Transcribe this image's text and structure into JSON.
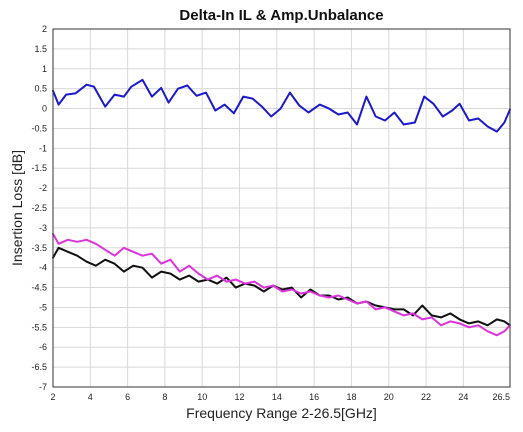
{
  "chart_data": {
    "type": "line",
    "title": "Delta-In IL & Amp.Unbalance",
    "xlabel": "Frequency Range 2-26.5[GHz]",
    "ylabel": "Insertion Loss [dB]",
    "xlim": [
      2,
      26.5
    ],
    "ylim": [
      -7,
      2
    ],
    "xticks": [
      2,
      4,
      6,
      8,
      10,
      12,
      14,
      16,
      18,
      20,
      22,
      24,
      26.5
    ],
    "yticks": [
      2,
      1.5,
      1,
      0.5,
      0,
      -0.5,
      -1,
      -1.5,
      -2,
      -2.5,
      -3,
      -3.5,
      -4,
      -4.5,
      -5,
      -5.5,
      -6,
      -6.5,
      -7
    ],
    "xtick_labels": [
      "2",
      "4",
      "6",
      "8",
      "10",
      "12",
      "14",
      "16",
      "18",
      "20",
      "22",
      "24",
      "26.5"
    ],
    "ytick_labels": [
      "2",
      "1.5",
      "1",
      "0.5",
      "0",
      "-0.5",
      "-1",
      "-1.5",
      "-2",
      "-2.5",
      "-3",
      "-3.5",
      "-4",
      "-4.5",
      "-5",
      "-5.5",
      "-6",
      "-6.5",
      "-7"
    ],
    "grid": true,
    "legend": "none",
    "series": [
      {
        "color": "#1a1acc",
        "points": [
          [
            2,
            0.45
          ],
          [
            2.3,
            0.1
          ],
          [
            2.7,
            0.35
          ],
          [
            3.2,
            0.38
          ],
          [
            3.8,
            0.6
          ],
          [
            4.2,
            0.55
          ],
          [
            4.8,
            0.05
          ],
          [
            5.3,
            0.35
          ],
          [
            5.8,
            0.3
          ],
          [
            6.2,
            0.55
          ],
          [
            6.8,
            0.72
          ],
          [
            7.3,
            0.3
          ],
          [
            7.8,
            0.52
          ],
          [
            8.2,
            0.15
          ],
          [
            8.7,
            0.5
          ],
          [
            9.2,
            0.58
          ],
          [
            9.7,
            0.32
          ],
          [
            10.2,
            0.4
          ],
          [
            10.7,
            -0.05
          ],
          [
            11.2,
            0.1
          ],
          [
            11.7,
            -0.12
          ],
          [
            12.2,
            0.3
          ],
          [
            12.7,
            0.25
          ],
          [
            13.2,
            0.05
          ],
          [
            13.7,
            -0.2
          ],
          [
            14.2,
            0.0
          ],
          [
            14.7,
            0.4
          ],
          [
            15.2,
            0.08
          ],
          [
            15.7,
            -0.1
          ],
          [
            16.3,
            0.1
          ],
          [
            16.8,
            0.0
          ],
          [
            17.3,
            -0.15
          ],
          [
            17.8,
            -0.1
          ],
          [
            18.3,
            -0.4
          ],
          [
            18.8,
            0.3
          ],
          [
            19.3,
            -0.2
          ],
          [
            19.8,
            -0.3
          ],
          [
            20.3,
            -0.1
          ],
          [
            20.8,
            -0.4
          ],
          [
            21.4,
            -0.35
          ],
          [
            21.9,
            0.3
          ],
          [
            22.4,
            0.12
          ],
          [
            22.9,
            -0.2
          ],
          [
            23.4,
            -0.05
          ],
          [
            23.8,
            0.12
          ],
          [
            24.3,
            -0.3
          ],
          [
            24.8,
            -0.25
          ],
          [
            25.3,
            -0.45
          ],
          [
            25.8,
            -0.58
          ],
          [
            26.2,
            -0.35
          ],
          [
            26.5,
            -0.02
          ]
        ]
      },
      {
        "color": "#111111",
        "points": [
          [
            2,
            -3.75
          ],
          [
            2.3,
            -3.5
          ],
          [
            2.8,
            -3.6
          ],
          [
            3.3,
            -3.7
          ],
          [
            3.8,
            -3.85
          ],
          [
            4.3,
            -3.95
          ],
          [
            4.8,
            -3.8
          ],
          [
            5.3,
            -3.9
          ],
          [
            5.8,
            -4.1
          ],
          [
            6.3,
            -3.95
          ],
          [
            6.8,
            -4.0
          ],
          [
            7.3,
            -4.25
          ],
          [
            7.8,
            -4.1
          ],
          [
            8.3,
            -4.15
          ],
          [
            8.8,
            -4.3
          ],
          [
            9.3,
            -4.2
          ],
          [
            9.8,
            -4.35
          ],
          [
            10.3,
            -4.3
          ],
          [
            10.8,
            -4.4
          ],
          [
            11.3,
            -4.25
          ],
          [
            11.8,
            -4.5
          ],
          [
            12.3,
            -4.4
          ],
          [
            12.8,
            -4.45
          ],
          [
            13.3,
            -4.6
          ],
          [
            13.8,
            -4.45
          ],
          [
            14.3,
            -4.55
          ],
          [
            14.8,
            -4.5
          ],
          [
            15.3,
            -4.75
          ],
          [
            15.8,
            -4.55
          ],
          [
            16.3,
            -4.7
          ],
          [
            16.8,
            -4.7
          ],
          [
            17.3,
            -4.8
          ],
          [
            17.8,
            -4.75
          ],
          [
            18.3,
            -4.9
          ],
          [
            18.8,
            -4.85
          ],
          [
            19.3,
            -4.95
          ],
          [
            19.8,
            -5.0
          ],
          [
            20.3,
            -5.05
          ],
          [
            20.8,
            -5.05
          ],
          [
            21.3,
            -5.2
          ],
          [
            21.8,
            -4.95
          ],
          [
            22.3,
            -5.2
          ],
          [
            22.8,
            -5.25
          ],
          [
            23.3,
            -5.15
          ],
          [
            23.8,
            -5.3
          ],
          [
            24.3,
            -5.4
          ],
          [
            24.8,
            -5.35
          ],
          [
            25.3,
            -5.45
          ],
          [
            25.8,
            -5.3
          ],
          [
            26.2,
            -5.35
          ],
          [
            26.5,
            -5.45
          ]
        ]
      },
      {
        "color": "#dd33dd",
        "points": [
          [
            2,
            -3.15
          ],
          [
            2.3,
            -3.4
          ],
          [
            2.8,
            -3.3
          ],
          [
            3.3,
            -3.35
          ],
          [
            3.8,
            -3.3
          ],
          [
            4.3,
            -3.4
          ],
          [
            4.8,
            -3.55
          ],
          [
            5.3,
            -3.7
          ],
          [
            5.8,
            -3.5
          ],
          [
            6.3,
            -3.6
          ],
          [
            6.8,
            -3.7
          ],
          [
            7.3,
            -3.65
          ],
          [
            7.8,
            -3.9
          ],
          [
            8.3,
            -3.8
          ],
          [
            8.8,
            -4.1
          ],
          [
            9.3,
            -3.95
          ],
          [
            9.8,
            -4.15
          ],
          [
            10.3,
            -4.3
          ],
          [
            10.8,
            -4.2
          ],
          [
            11.3,
            -4.35
          ],
          [
            11.8,
            -4.3
          ],
          [
            12.3,
            -4.4
          ],
          [
            12.8,
            -4.35
          ],
          [
            13.3,
            -4.5
          ],
          [
            13.8,
            -4.45
          ],
          [
            14.3,
            -4.6
          ],
          [
            14.8,
            -4.55
          ],
          [
            15.3,
            -4.65
          ],
          [
            15.8,
            -4.6
          ],
          [
            16.3,
            -4.7
          ],
          [
            16.8,
            -4.75
          ],
          [
            17.3,
            -4.7
          ],
          [
            17.8,
            -4.8
          ],
          [
            18.3,
            -4.9
          ],
          [
            18.8,
            -4.85
          ],
          [
            19.3,
            -5.05
          ],
          [
            19.8,
            -5.0
          ],
          [
            20.3,
            -5.1
          ],
          [
            20.8,
            -5.2
          ],
          [
            21.3,
            -5.15
          ],
          [
            21.8,
            -5.3
          ],
          [
            22.3,
            -5.25
          ],
          [
            22.8,
            -5.45
          ],
          [
            23.3,
            -5.35
          ],
          [
            23.8,
            -5.4
          ],
          [
            24.3,
            -5.5
          ],
          [
            24.8,
            -5.45
          ],
          [
            25.3,
            -5.6
          ],
          [
            25.8,
            -5.7
          ],
          [
            26.2,
            -5.6
          ],
          [
            26.5,
            -5.45
          ]
        ]
      }
    ]
  }
}
